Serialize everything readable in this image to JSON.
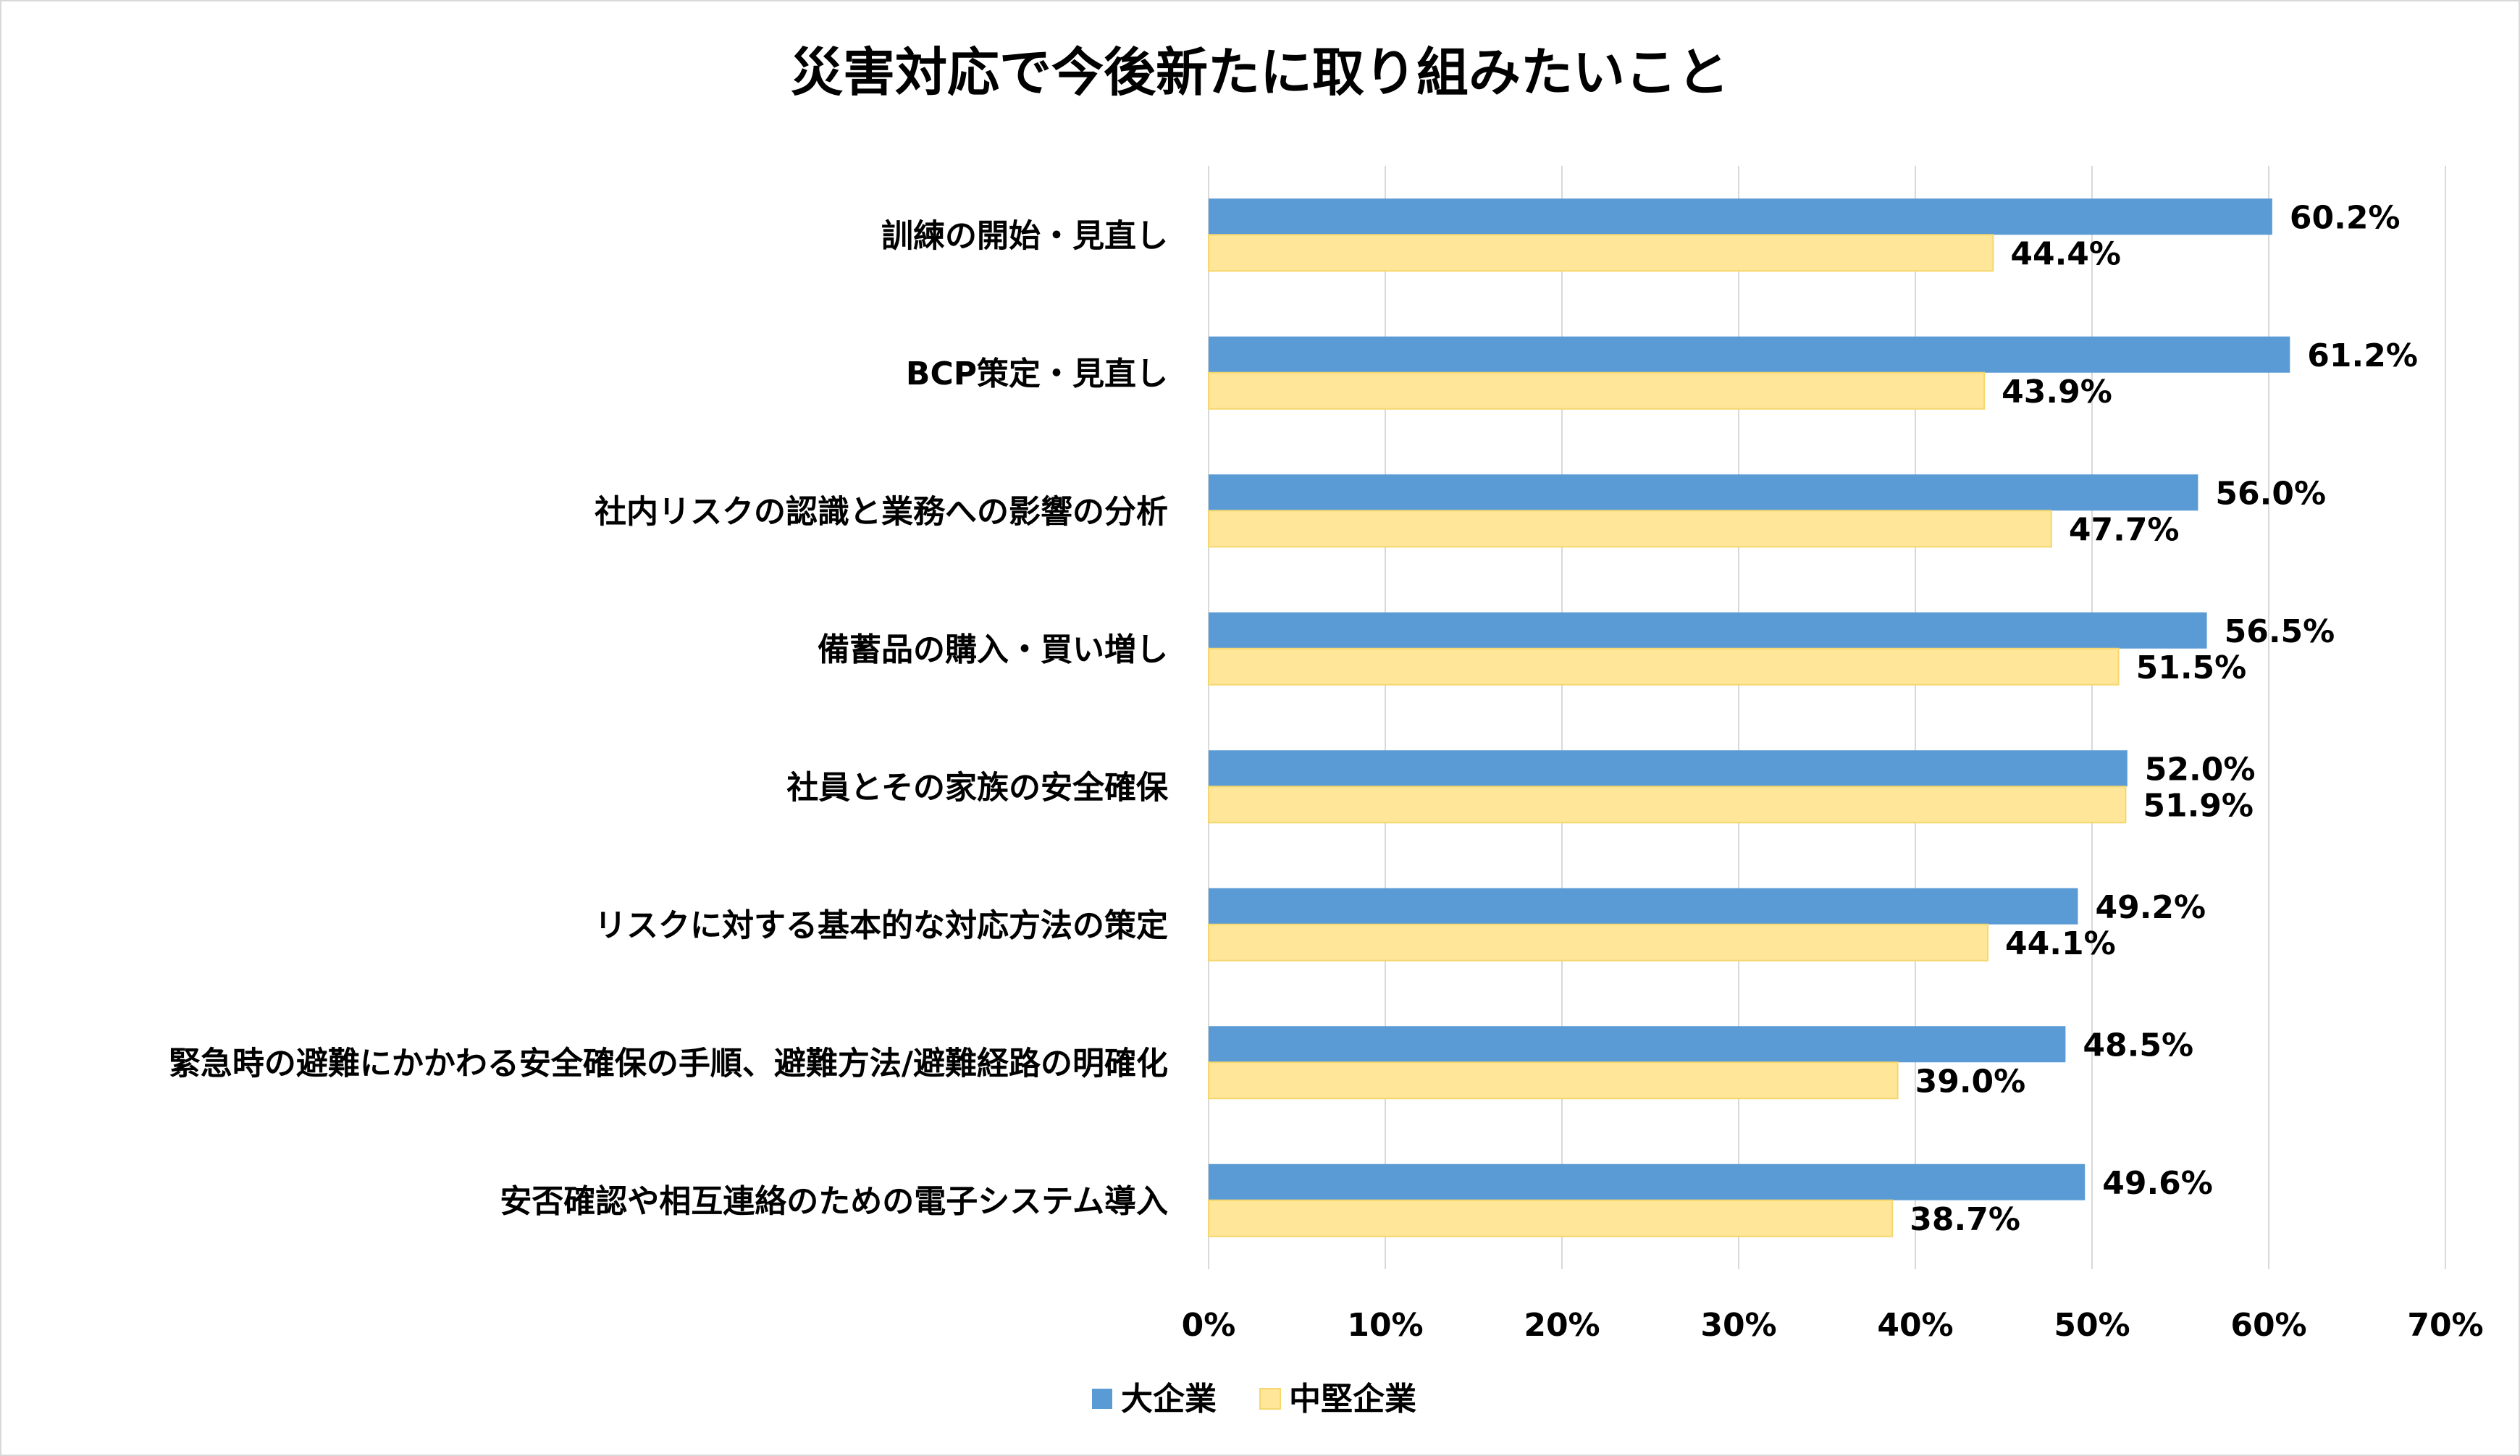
{
  "chart_data": {
    "type": "bar",
    "orientation": "horizontal",
    "title": "災害対応で今後新たに取り組みたいこと",
    "categories": [
      "訓練の開始・見直し",
      "BCP策定・見直し",
      "社内リスクの認識と業務への影響の分析",
      "備蓄品の購入・買い増し",
      "社員とその家族の安全確保",
      "リスクに対する基本的な対応方法の策定",
      "緊急時の避難にかかわる安全確保の手順、避難方法/避難経路の明確化",
      "安否確認や相互連絡のための電子システム導入"
    ],
    "series": [
      {
        "name": "大企業",
        "color": "#5B9BD5",
        "values": [
          60.2,
          61.2,
          56.0,
          56.5,
          52.0,
          49.2,
          48.5,
          49.6
        ]
      },
      {
        "name": "中堅企業",
        "color": "#FFE699",
        "values": [
          44.4,
          43.9,
          47.7,
          51.5,
          51.9,
          44.1,
          39.0,
          38.7
        ]
      }
    ],
    "data_labels": [
      [
        "60.2%",
        "61.2%",
        "56.0%",
        "56.5%",
        "52.0%",
        "49.2%",
        "48.5%",
        "49.6%"
      ],
      [
        "44.4%",
        "43.9%",
        "47.7%",
        "51.5%",
        "51.9%",
        "44.1%",
        "39.0%",
        "38.7%"
      ]
    ],
    "xlim": [
      0,
      70
    ],
    "xticks": [
      "0%",
      "10%",
      "20%",
      "30%",
      "40%",
      "50%",
      "60%",
      "70%"
    ],
    "xlabel": "",
    "ylabel": "",
    "grid": "vertical",
    "legend": "bottom"
  }
}
